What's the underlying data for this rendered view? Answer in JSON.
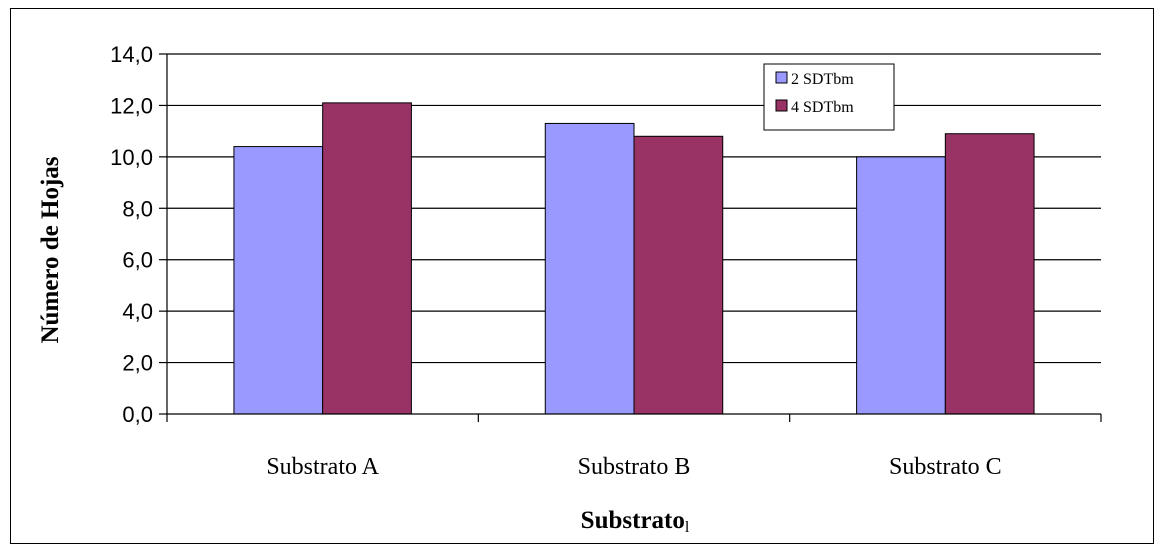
{
  "chart_data": {
    "type": "bar",
    "title": "",
    "xlabel": "Substrato",
    "xlabel_suffix": "l",
    "ylabel": "Número de Hojas",
    "categories": [
      "Substrato A",
      "Substrato B",
      "Substrato C"
    ],
    "series": [
      {
        "name": "2 SDTbm",
        "color": "#9999ff",
        "values": [
          10.4,
          11.3,
          10.0
        ]
      },
      {
        "name": "4 SDTbm",
        "color": "#993366",
        "values": [
          12.1,
          10.8,
          10.9
        ]
      }
    ],
    "ylim": [
      0,
      14
    ],
    "yticks": [
      0,
      2,
      4,
      6,
      8,
      10,
      12,
      14
    ],
    "ytick_labels": [
      "0,0",
      "2,0",
      "4,0",
      "6,0",
      "8,0",
      "10,0",
      "12,0",
      "14,0"
    ],
    "grid": true,
    "legend_position": "top-right"
  }
}
